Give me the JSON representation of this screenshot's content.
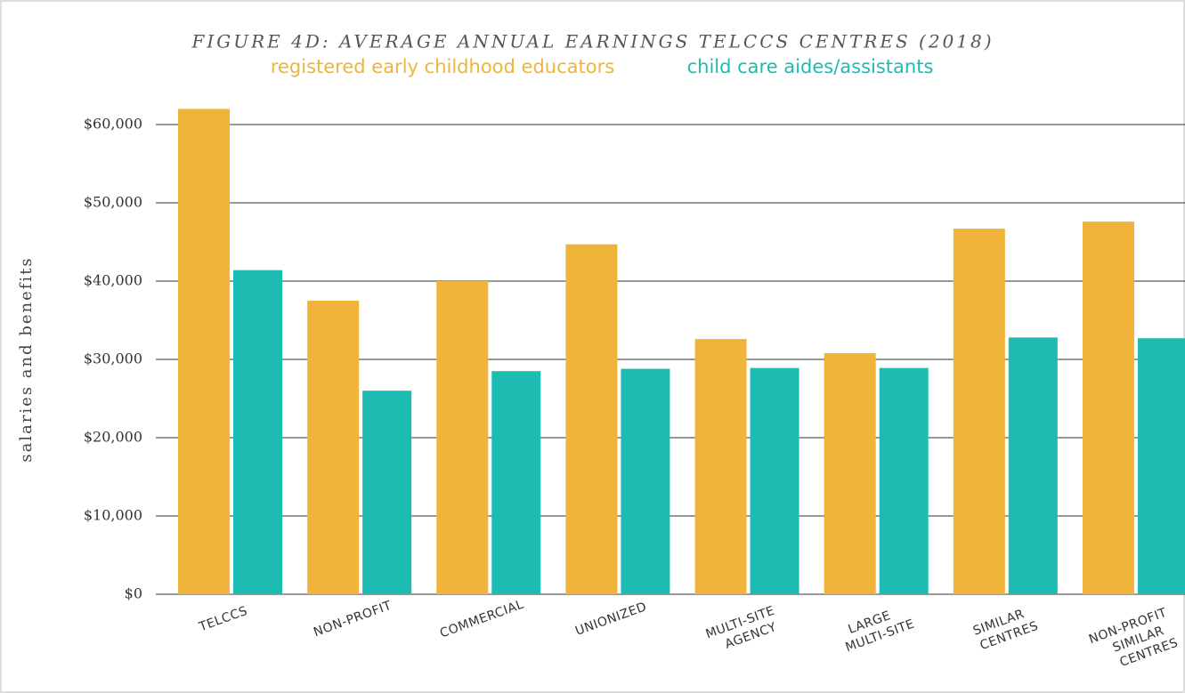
{
  "chart_data": {
    "type": "bar",
    "title": "FIGURE 4D:  AVERAGE ANNUAL EARNINGS TELCCS CENTRES (2018)",
    "y_label": "salaries and benefits",
    "categories": [
      [
        "TELCCS"
      ],
      [
        "NON-PROFIT"
      ],
      [
        "COMMERCIAL"
      ],
      [
        "UNIONIZED"
      ],
      [
        "MULTI-SITE",
        "AGENCY"
      ],
      [
        "LARGE",
        "MULTI-SITE"
      ],
      [
        "SIMILAR",
        "CENTRES"
      ],
      [
        "NON-PROFIT",
        "SIMILAR",
        "CENTRES"
      ]
    ],
    "series": [
      {
        "name": "registered early childhood educators",
        "color": "#f0b43a",
        "values": [
          62000,
          37500,
          40000,
          44700,
          32600,
          30800,
          46700,
          47600
        ]
      },
      {
        "name": "child care aides/assistants",
        "color": "#1dbcb2",
        "values": [
          41400,
          26000,
          28500,
          28800,
          28900,
          28900,
          32800,
          32700
        ]
      }
    ],
    "ylim": [
      0,
      60000
    ],
    "yticks": [
      {
        "value": 0,
        "label": "$0"
      },
      {
        "value": 10000,
        "label": "$10,000"
      },
      {
        "value": 20000,
        "label": "$20,000"
      },
      {
        "value": 30000,
        "label": "$30,000"
      },
      {
        "value": 40000,
        "label": "$40,000"
      },
      {
        "value": 50000,
        "label": "$50,000"
      },
      {
        "value": 60000,
        "label": "$60,000"
      }
    ],
    "grid": true
  }
}
